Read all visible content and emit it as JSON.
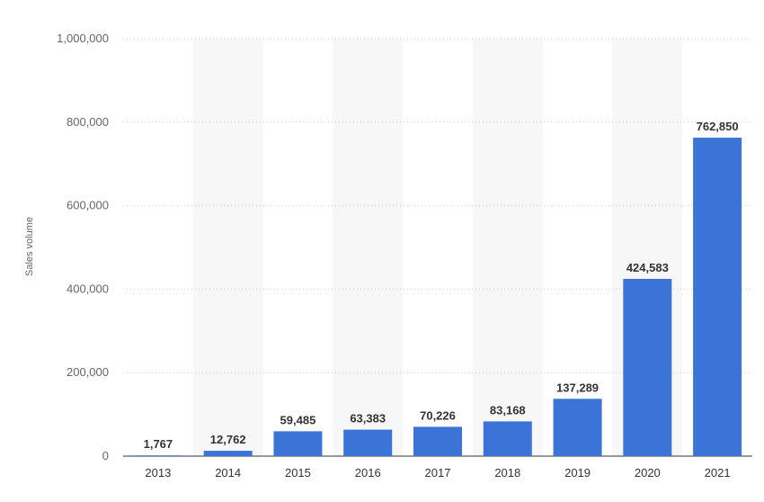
{
  "chart_data": {
    "type": "bar",
    "categories": [
      "2013",
      "2014",
      "2015",
      "2016",
      "2017",
      "2018",
      "2019",
      "2020",
      "2021"
    ],
    "values": [
      1767,
      12762,
      59485,
      63383,
      70226,
      83168,
      137289,
      424583,
      762850
    ],
    "data_labels": [
      "1,767",
      "12,762",
      "59,485",
      "63,383",
      "70,226",
      "83,168",
      "137,289",
      "424,583",
      "762,850"
    ],
    "ylabel": "Sales volume",
    "xlabel": "",
    "ylim": [
      0,
      1000000
    ],
    "yticks": [
      0,
      200000,
      400000,
      600000,
      800000,
      1000000
    ],
    "ytick_labels": [
      "0",
      "200,000",
      "400,000",
      "600,000",
      "800,000",
      "1,000,000"
    ],
    "grid": true,
    "bar_color": "#3b73d6",
    "band_color": "#f7f7f7",
    "grid_color": "#cccccc"
  }
}
